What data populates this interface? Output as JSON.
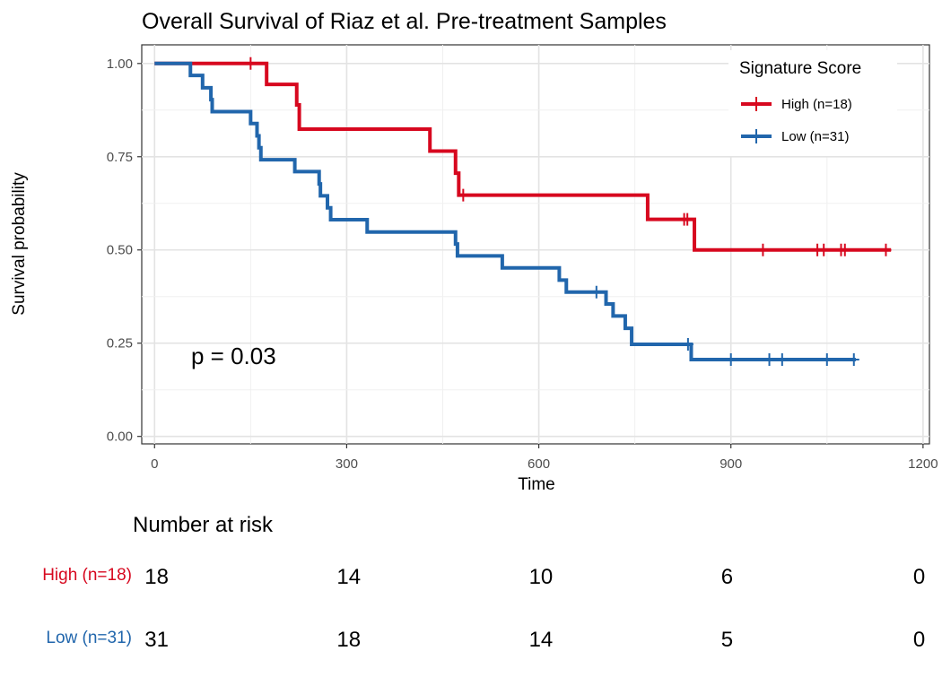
{
  "chart_data": {
    "type": "line",
    "subtype": "kaplan-meier",
    "title": "Overall Survival of Riaz et al. Pre-treatment Samples",
    "xlabel": "Time",
    "ylabel": "Survival probability",
    "xlim": [
      -20,
      1210
    ],
    "ylim": [
      -0.02,
      1.05
    ],
    "x_ticks": [
      0,
      300,
      600,
      900,
      1200
    ],
    "y_ticks": [
      0.0,
      0.25,
      0.5,
      0.75,
      1.0
    ],
    "x_tick_labels": [
      "0",
      "300",
      "600",
      "900",
      "1200"
    ],
    "y_tick_labels": [
      "0.00",
      "0.25",
      "0.50",
      "0.75",
      "1.00"
    ],
    "grid": true,
    "legend": {
      "title": "Signature Score",
      "position": "top-right"
    },
    "annotation": "p = 0.03",
    "annotation_position": [
      20,
      0.195
    ],
    "series": [
      {
        "name": "High (n=18)",
        "color": "#d7081f",
        "steps": [
          [
            0,
            1.0
          ],
          [
            175,
            0.944
          ],
          [
            222,
            0.889
          ],
          [
            226,
            0.824
          ],
          [
            430,
            0.765
          ],
          [
            470,
            0.706
          ],
          [
            475,
            0.647
          ],
          [
            770,
            0.582
          ],
          [
            843,
            0.5
          ],
          [
            1150,
            0.5
          ]
        ],
        "censored": [
          [
            150,
            1.0
          ],
          [
            482,
            0.647
          ],
          [
            827,
            0.582
          ],
          [
            832,
            0.582
          ],
          [
            950,
            0.5
          ],
          [
            1035,
            0.5
          ],
          [
            1045,
            0.5
          ],
          [
            1072,
            0.5
          ],
          [
            1078,
            0.5
          ],
          [
            1142,
            0.5
          ]
        ]
      },
      {
        "name": "Low (n=31)",
        "color": "#2166ac",
        "steps": [
          [
            0,
            1.0
          ],
          [
            56,
            0.968
          ],
          [
            75,
            0.935
          ],
          [
            88,
            0.903
          ],
          [
            90,
            0.871
          ],
          [
            150,
            0.839
          ],
          [
            160,
            0.806
          ],
          [
            163,
            0.774
          ],
          [
            166,
            0.742
          ],
          [
            219,
            0.71
          ],
          [
            257,
            0.677
          ],
          [
            259,
            0.645
          ],
          [
            270,
            0.613
          ],
          [
            275,
            0.581
          ],
          [
            332,
            0.548
          ],
          [
            470,
            0.516
          ],
          [
            473,
            0.484
          ],
          [
            543,
            0.452
          ],
          [
            632,
            0.419
          ],
          [
            643,
            0.387
          ],
          [
            705,
            0.355
          ],
          [
            716,
            0.323
          ],
          [
            735,
            0.29
          ],
          [
            745,
            0.247
          ],
          [
            838,
            0.206
          ],
          [
            1095,
            0.206
          ]
        ],
        "censored": [
          [
            690,
            0.387
          ],
          [
            833,
            0.247
          ],
          [
            900,
            0.206
          ],
          [
            960,
            0.206
          ],
          [
            980,
            0.206
          ],
          [
            1050,
            0.206
          ],
          [
            1092,
            0.206
          ]
        ]
      }
    ]
  },
  "risk_table": {
    "title": "Number at risk",
    "times": [
      0,
      300,
      600,
      900,
      1200
    ],
    "rows": [
      {
        "label": "High (n=18)",
        "color": "#d7081f",
        "values": [
          "18",
          "14",
          "10",
          "6",
          "0"
        ]
      },
      {
        "label": "Low (n=31)",
        "color": "#2166ac",
        "values": [
          "31",
          "18",
          "14",
          "5",
          "0"
        ]
      }
    ]
  }
}
